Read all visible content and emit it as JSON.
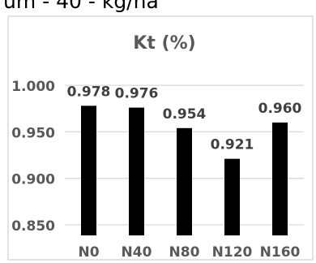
{
  "header_fragment": "um - 40 - kg/ha",
  "chart_data": {
    "type": "bar",
    "title": "Kt (%)",
    "categories": [
      "N0",
      "N40",
      "N80",
      "N120",
      "N160"
    ],
    "values": [
      0.978,
      0.976,
      0.954,
      0.921,
      0.96
    ],
    "data_labels": [
      "0.978",
      "0.976",
      "0.954",
      "0.921",
      "0.960"
    ],
    "ylim": [
      0.835,
      1.0
    ],
    "yticks": [
      0.85,
      0.9,
      0.95,
      1.0
    ],
    "ytick_labels": [
      "0.850",
      "0.900",
      "0.950",
      "1.000"
    ],
    "grid": true,
    "legend": "none",
    "bar_color": "#000000",
    "grid_color": "#d9d9d9"
  }
}
